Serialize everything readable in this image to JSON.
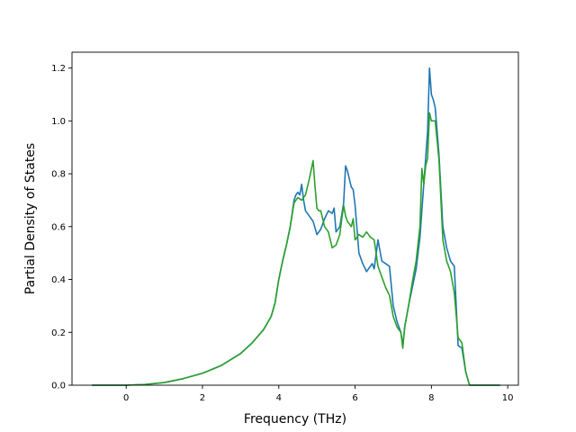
{
  "chart_data": {
    "type": "line",
    "title": "",
    "xlabel": "Frequency (THz)",
    "ylabel": "Partial Density of States",
    "xlim": [
      -1.42,
      10.28
    ],
    "ylim": [
      0.0,
      1.26
    ],
    "xticks": [
      0,
      2,
      4,
      6,
      8,
      10
    ],
    "xtick_labels": [
      "0",
      "2",
      "4",
      "6",
      "8",
      "10"
    ],
    "yticks": [
      0.0,
      0.2,
      0.4,
      0.6,
      0.8,
      1.0,
      1.2
    ],
    "ytick_labels": [
      "0.0",
      "0.2",
      "0.4",
      "0.6",
      "0.8",
      "1.0",
      "1.2"
    ],
    "grid": false,
    "legend": "none",
    "series": [
      {
        "color": "#1f77b4",
        "x": [
          -0.9,
          -0.5,
          0.0,
          0.5,
          1.0,
          1.5,
          2.0,
          2.5,
          3.0,
          3.3,
          3.6,
          3.8,
          3.9,
          4.0,
          4.1,
          4.2,
          4.3,
          4.4,
          4.45,
          4.5,
          4.55,
          4.6,
          4.65,
          4.7,
          4.8,
          4.9,
          5.0,
          5.1,
          5.2,
          5.3,
          5.4,
          5.45,
          5.5,
          5.6,
          5.7,
          5.75,
          5.8,
          5.9,
          5.95,
          6.0,
          6.1,
          6.2,
          6.3,
          6.4,
          6.45,
          6.5,
          6.6,
          6.7,
          6.8,
          6.9,
          7.0,
          7.1,
          7.2,
          7.25,
          7.3,
          7.4,
          7.5,
          7.6,
          7.7,
          7.8,
          7.9,
          7.95,
          8.0,
          8.05,
          8.1,
          8.2,
          8.3,
          8.4,
          8.5,
          8.6,
          8.7,
          8.8,
          8.9,
          9.0,
          9.5,
          9.8
        ],
        "y": [
          0.0,
          0.0,
          0.0,
          0.003,
          0.01,
          0.025,
          0.045,
          0.075,
          0.12,
          0.16,
          0.21,
          0.26,
          0.31,
          0.4,
          0.47,
          0.53,
          0.6,
          0.7,
          0.72,
          0.73,
          0.72,
          0.76,
          0.7,
          0.66,
          0.64,
          0.62,
          0.57,
          0.59,
          0.63,
          0.66,
          0.65,
          0.67,
          0.58,
          0.6,
          0.69,
          0.83,
          0.81,
          0.75,
          0.74,
          0.68,
          0.5,
          0.46,
          0.43,
          0.45,
          0.46,
          0.44,
          0.55,
          0.47,
          0.46,
          0.45,
          0.3,
          0.24,
          0.2,
          0.15,
          0.22,
          0.3,
          0.37,
          0.44,
          0.56,
          0.76,
          0.96,
          1.2,
          1.1,
          1.08,
          1.05,
          0.87,
          0.6,
          0.52,
          0.47,
          0.45,
          0.15,
          0.14,
          0.05,
          0.0,
          0.0,
          0.0
        ]
      },
      {
        "color": "#2ca02c",
        "x": [
          -0.9,
          -0.5,
          0.0,
          0.5,
          1.0,
          1.5,
          2.0,
          2.5,
          3.0,
          3.3,
          3.6,
          3.8,
          3.9,
          4.0,
          4.1,
          4.2,
          4.3,
          4.4,
          4.5,
          4.6,
          4.7,
          4.8,
          4.9,
          4.95,
          5.0,
          5.05,
          5.1,
          5.2,
          5.3,
          5.4,
          5.5,
          5.6,
          5.65,
          5.7,
          5.75,
          5.8,
          5.9,
          5.95,
          6.0,
          6.1,
          6.2,
          6.3,
          6.4,
          6.5,
          6.6,
          6.7,
          6.8,
          6.9,
          7.0,
          7.1,
          7.2,
          7.25,
          7.3,
          7.4,
          7.5,
          7.6,
          7.7,
          7.75,
          7.8,
          7.85,
          7.9,
          7.95,
          8.0,
          8.1,
          8.2,
          8.3,
          8.4,
          8.5,
          8.6,
          8.7,
          8.8,
          8.9,
          9.0,
          9.5,
          9.8
        ],
        "y": [
          0.0,
          0.0,
          0.0,
          0.003,
          0.01,
          0.025,
          0.045,
          0.075,
          0.12,
          0.16,
          0.21,
          0.26,
          0.31,
          0.4,
          0.47,
          0.53,
          0.6,
          0.69,
          0.71,
          0.7,
          0.72,
          0.78,
          0.85,
          0.75,
          0.67,
          0.66,
          0.66,
          0.6,
          0.58,
          0.52,
          0.53,
          0.57,
          0.63,
          0.68,
          0.64,
          0.62,
          0.6,
          0.63,
          0.55,
          0.57,
          0.56,
          0.58,
          0.56,
          0.55,
          0.45,
          0.41,
          0.37,
          0.34,
          0.26,
          0.22,
          0.2,
          0.14,
          0.22,
          0.3,
          0.39,
          0.47,
          0.6,
          0.82,
          0.76,
          0.83,
          0.86,
          1.03,
          1.0,
          1.0,
          0.85,
          0.55,
          0.47,
          0.43,
          0.35,
          0.18,
          0.16,
          0.05,
          0.0,
          0.0,
          0.0
        ]
      }
    ]
  }
}
